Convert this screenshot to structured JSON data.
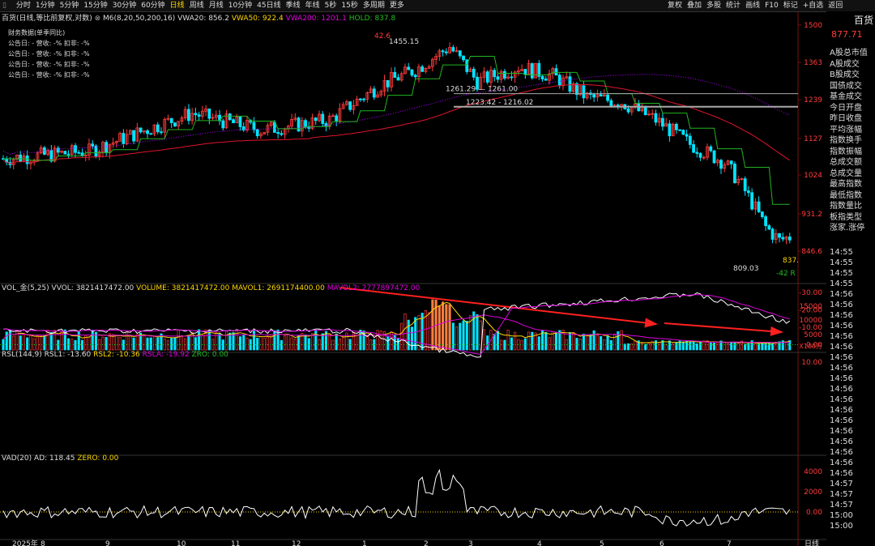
{
  "toolbar": {
    "periods": [
      "分时",
      "1分钟",
      "5分钟",
      "15分钟",
      "30分钟",
      "60分钟",
      "日线",
      "周线",
      "月线",
      "10分钟",
      "45日线",
      "季线",
      "年线",
      "5秒",
      "15秒",
      "多周期",
      "更多"
    ],
    "active_period": "日线",
    "right_tools": [
      "复权",
      "叠加",
      "多股",
      "统计",
      "画线",
      "F10",
      "标记",
      "+自选",
      "返回"
    ]
  },
  "header": {
    "symbol_name": "百货",
    "price": "877.71",
    "main_title": "百货(日线,等比前复权,对数)",
    "indicator": "M6(8,20,50,200,16)",
    "vwa20": "VWA20: 856.2",
    "vwa50": "VWA50: 922.4",
    "vwa200": "VWA200: 1201.1",
    "hold": "HOLD: 837.8"
  },
  "financial": {
    "title": "财务数据(单季同比)",
    "rows": [
      "公告日: -   营收: -%   扣非: -%",
      "公告日: -   营收: -%   扣非: -%",
      "公告日: -   营收: -%   扣非: -%",
      "公告日: -   营收: -%   扣非: -%"
    ]
  },
  "price_axis": [
    "1500",
    "1363",
    "1239",
    "1127",
    "1024",
    "931.2",
    "846.6"
  ],
  "annotations": {
    "high_label": "42.6",
    "high_price": "1455.15",
    "level1": "1261.29 — 1261.00",
    "level2": "1223.42 - 1216.02",
    "low_price": "809.03",
    "low_label": "-42 R",
    "last_label": "837."
  },
  "volume_panel": {
    "title": "VOL_金(5,25)",
    "vvol": "VVOL: 3821417472.00",
    "volume": "VOLUME: 3821417472.00",
    "mavol1": "MAVOL1: 2691174400.00",
    "mavol2": "MAVOL2: 2777897472.00",
    "axis": [
      "15000",
      "10000",
      "5000"
    ],
    "unit": "X100万"
  },
  "rsl_panel": {
    "title": "RSL(144,9)",
    "rsl1": "RSL1: -13.60",
    "rsl2": "RSL2: -10.36",
    "rsla": "RSLA: -19.92",
    "zro": "ZRO: 0.00",
    "axis": [
      "10.00",
      "0.00",
      "-10.00",
      "-20.00",
      "-30.00"
    ]
  },
  "vad_panel": {
    "title": "VAD(20)",
    "ad": "AD: 118.45",
    "zero": "ZERO: 0.00",
    "axis": [
      "4000",
      "2000",
      "0.00"
    ]
  },
  "date_axis": [
    "2025年",
    "8",
    "9",
    "10",
    "11",
    "12",
    "1",
    "2",
    "3",
    "4",
    "5",
    "6",
    "7"
  ],
  "period_label": "日线",
  "right_panel": {
    "items": [
      "A股总市值",
      "A股成交",
      "B股成交",
      "国债成交",
      "基金成交",
      "今日开盘",
      "昨日收盘",
      "平均涨幅",
      "指数换手",
      "指数振幅",
      "总成交额",
      "总成交量",
      "最高指数",
      "最低指数",
      "指数量比",
      "板指类型",
      "涨家.涨停"
    ],
    "times": [
      "14:55",
      "14:55",
      "14:55",
      "14:55",
      "14:56",
      "14:56",
      "14:56",
      "14:56",
      "14:56",
      "14:56",
      "14:56",
      "14:56",
      "14:56",
      "14:56",
      "14:56",
      "14:56",
      "14:56",
      "14:56",
      "14:56",
      "14:56",
      "14:56",
      "14:56",
      "14:57",
      "14:57",
      "14:57",
      "15:00",
      "15:00"
    ]
  },
  "colors": {
    "up": "#ff3b3b",
    "down": "#00e5ff",
    "ma_green": "#22b422",
    "ma_purple": "#b000ff",
    "ma_red": "#e0152b",
    "yellow": "#ffd600",
    "arrow": "#ff2020"
  }
}
